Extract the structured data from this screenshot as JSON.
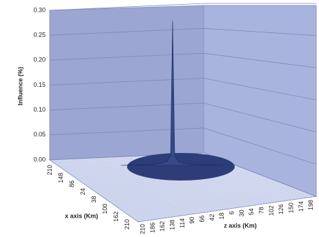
{
  "chart_data": {
    "type": "surface3d",
    "y_label": "Influence (%)",
    "x_label": "x axis (Km)",
    "z_label": "z axis (Km)",
    "ylim": [
      0,
      0.3
    ],
    "yticks": [
      {
        "value": 0,
        "label": "0.00"
      },
      {
        "value": 0.05,
        "label": "0.05"
      },
      {
        "value": 0.1,
        "label": "0.10"
      },
      {
        "value": 0.15,
        "label": "0.15"
      },
      {
        "value": 0.2,
        "label": "0.20"
      },
      {
        "value": 0.25,
        "label": "0.25"
      },
      {
        "value": 0.3,
        "label": "0.30"
      }
    ],
    "x_categories": [
      "210",
      "148",
      "86",
      "24",
      "38",
      "100",
      "162",
      "210"
    ],
    "z_categories": [
      "210",
      "186",
      "162",
      "138",
      "114",
      "90",
      "66",
      "42",
      "18",
      "6",
      "30",
      "54",
      "78",
      "102",
      "126",
      "150",
      "174",
      "198"
    ],
    "profile_values": [
      0,
      0.001,
      0.002,
      0.004,
      0.008,
      0.02,
      0.29,
      0.02,
      0.008,
      0.004,
      0.002,
      0.001,
      0
    ],
    "color": "#34488a",
    "grid": true
  }
}
